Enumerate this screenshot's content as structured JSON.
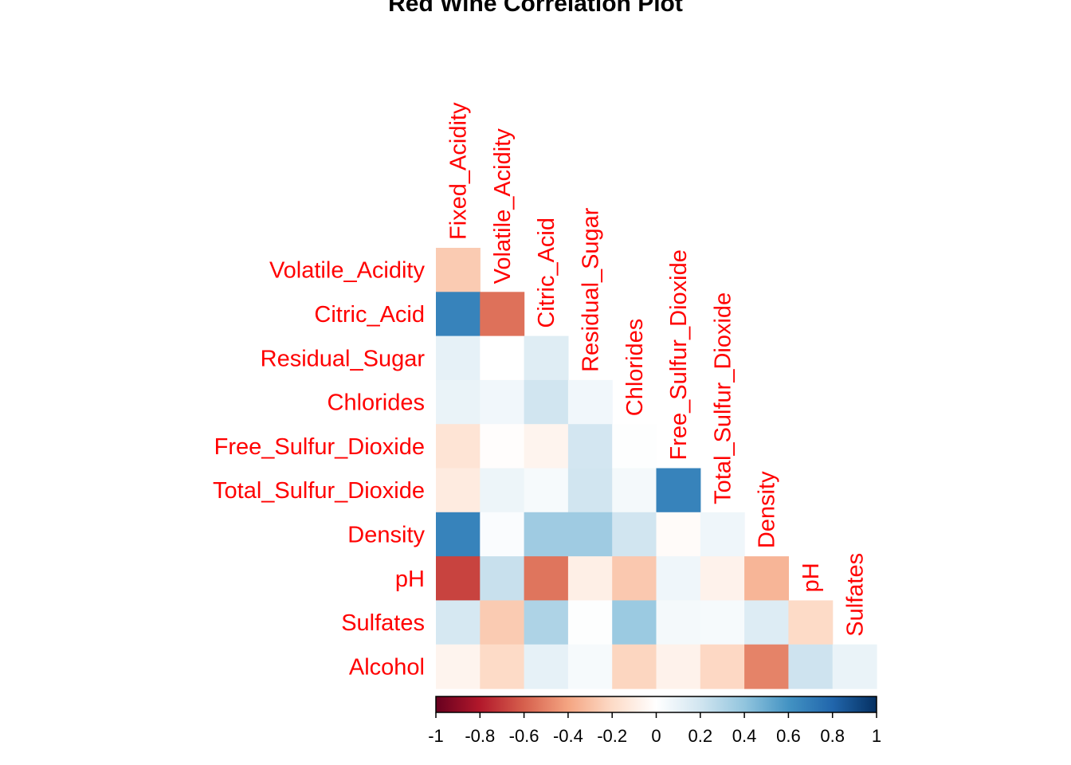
{
  "chart_data": {
    "type": "heatmap",
    "title": "Red Wine Correlation Plot",
    "layout": "lower-triangle",
    "row_labels": [
      "Volatile_Acidity",
      "Citric_Acid",
      "Residual_Sugar",
      "Chlorides",
      "Free_Sulfur_Dioxide",
      "Total_Sulfur_Dioxide",
      "Density",
      "pH",
      "Sulfates",
      "Alcohol"
    ],
    "col_labels": [
      "Fixed_Acidity",
      "Volatile_Acidity",
      "Citric_Acid",
      "Residual_Sugar",
      "Chlorides",
      "Free_Sulfur_Dioxide",
      "Total_Sulfur_Dioxide",
      "Density",
      "pH",
      "Sulfates"
    ],
    "values": [
      [
        -0.26
      ],
      [
        0.67,
        -0.55
      ],
      [
        0.11,
        0.0,
        0.14
      ],
      [
        0.09,
        0.06,
        0.2,
        0.06
      ],
      [
        -0.15,
        -0.01,
        -0.06,
        0.19,
        0.01
      ],
      [
        -0.11,
        0.08,
        0.04,
        0.2,
        0.05,
        0.67
      ],
      [
        0.67,
        0.02,
        0.36,
        0.36,
        0.2,
        -0.02,
        0.07
      ],
      [
        -0.68,
        0.23,
        -0.54,
        -0.09,
        -0.27,
        0.07,
        -0.07,
        -0.34
      ],
      [
        0.18,
        -0.26,
        0.31,
        0.01,
        0.37,
        0.05,
        0.04,
        0.15,
        -0.2
      ],
      [
        -0.06,
        -0.2,
        0.11,
        0.04,
        -0.22,
        -0.07,
        -0.21,
        -0.5,
        0.21,
        0.09
      ]
    ],
    "colorbar": {
      "min": -1,
      "max": 1,
      "ticks": [
        "-1",
        "-0.8",
        "-0.6",
        "-0.4",
        "-0.2",
        "0",
        "0.2",
        "0.4",
        "0.6",
        "0.8",
        "1"
      ]
    },
    "colors": {
      "palette": [
        "#67001F",
        "#B2182B",
        "#D6604D",
        "#F4A582",
        "#FDDBC7",
        "#FFFFFF",
        "#D1E5F0",
        "#92C5DE",
        "#4393C3",
        "#2166AC",
        "#053061"
      ],
      "label": "#ff0000",
      "title": "#000000"
    }
  }
}
